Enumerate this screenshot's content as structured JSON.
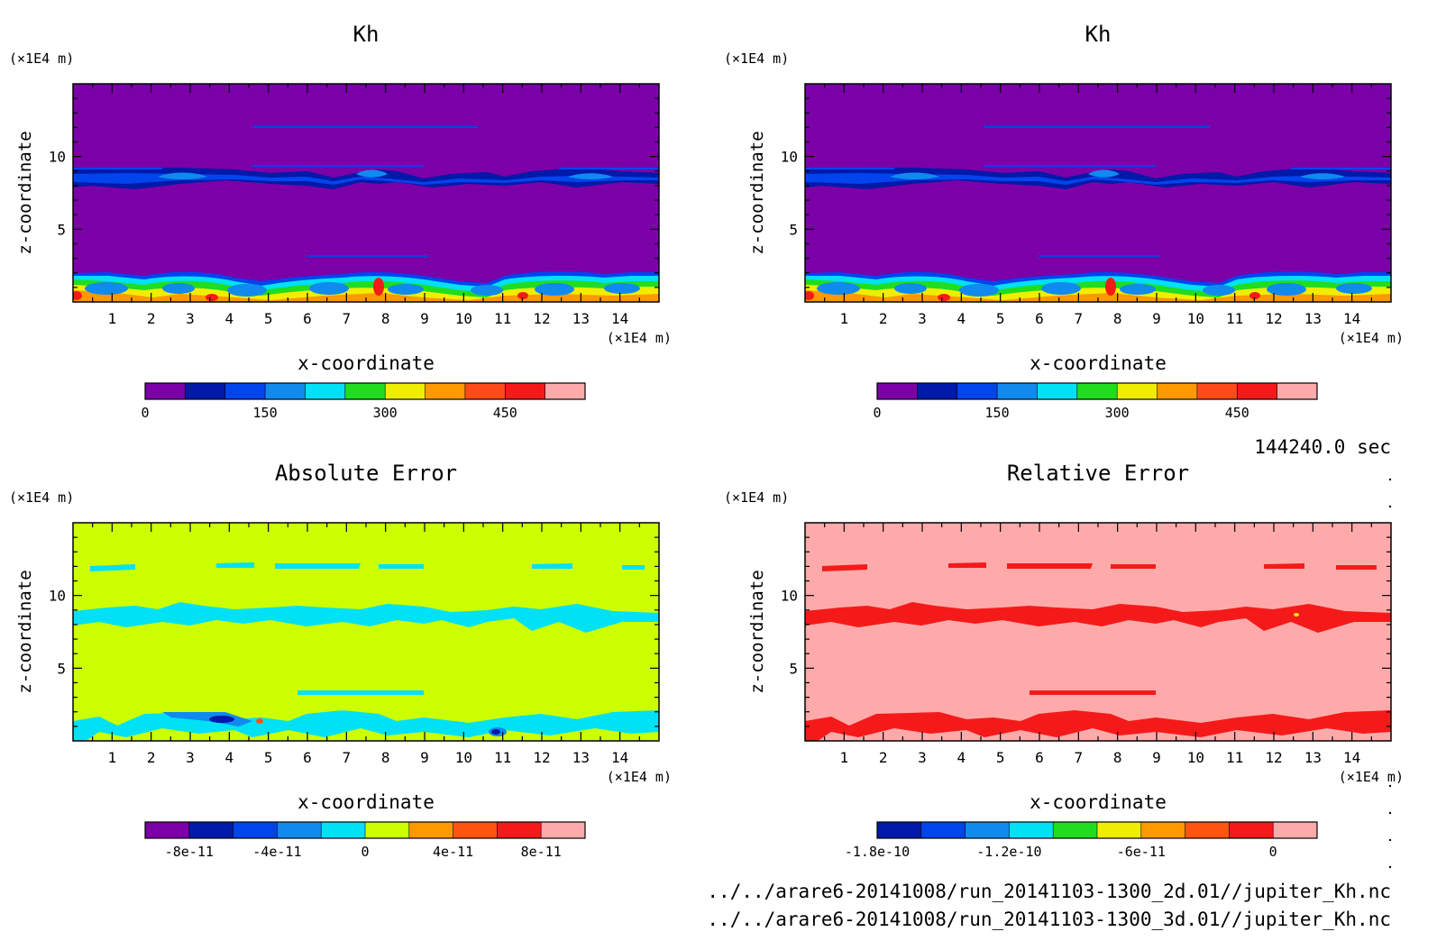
{
  "chart_data": [
    {
      "type": "heatmap",
      "title": "Kh",
      "xlabel": "x-coordinate",
      "ylabel": "z-coordinate",
      "x_unit": "(×1E4 m)",
      "y_unit": "(×1E4 m)",
      "xlim": [
        0,
        15
      ],
      "ylim": [
        0,
        15
      ],
      "xticks": [
        1,
        2,
        3,
        4,
        5,
        6,
        7,
        8,
        9,
        10,
        11,
        12,
        13,
        14
      ],
      "yticks": [
        5,
        10
      ],
      "background_color": "#7b00a8",
      "colorbar": {
        "colors": [
          "#7b00a8",
          "#0019a8",
          "#0044ee",
          "#108aee",
          "#00e1f5",
          "#20dd20",
          "#f0ee00",
          "#ff9900",
          "#ff4a1a",
          "#f51a1a",
          "#ffaaaa"
        ],
        "tick_labels": [
          "0",
          "150",
          "300",
          "450"
        ],
        "tick_positions": [
          0,
          3,
          6,
          9
        ]
      }
    },
    {
      "type": "heatmap",
      "title": "Kh",
      "xlabel": "x-coordinate",
      "ylabel": "z-coordinate",
      "x_unit": "(×1E4 m)",
      "y_unit": "(×1E4 m)",
      "xlim": [
        0,
        15
      ],
      "ylim": [
        0,
        15
      ],
      "xticks": [
        1,
        2,
        3,
        4,
        5,
        6,
        7,
        8,
        9,
        10,
        11,
        12,
        13,
        14
      ],
      "yticks": [
        5,
        10
      ],
      "background_color": "#7b00a8",
      "colorbar": {
        "colors": [
          "#7b00a8",
          "#0019a8",
          "#0044ee",
          "#108aee",
          "#00e1f5",
          "#20dd20",
          "#f0ee00",
          "#ff9900",
          "#ff4a1a",
          "#f51a1a",
          "#ffaaaa"
        ],
        "tick_labels": [
          "0",
          "150",
          "300",
          "450"
        ],
        "tick_positions": [
          0,
          3,
          6,
          9
        ]
      }
    },
    {
      "type": "heatmap",
      "title": "Absolute Error",
      "xlabel": "x-coordinate",
      "ylabel": "z-coordinate",
      "x_unit": "(×1E4 m)",
      "y_unit": "(×1E4 m)",
      "xlim": [
        0,
        15
      ],
      "ylim": [
        0,
        15
      ],
      "xticks": [
        1,
        2,
        3,
        4,
        5,
        6,
        7,
        8,
        9,
        10,
        11,
        12,
        13,
        14
      ],
      "yticks": [
        5,
        10
      ],
      "background_color": "#ccff00",
      "colorbar": {
        "colors": [
          "#7b00a8",
          "#0019a8",
          "#0044ee",
          "#108aee",
          "#00e1f5",
          "#ccff00",
          "#ff9900",
          "#ff5511",
          "#f51a1a",
          "#ffaaaa"
        ],
        "tick_labels": [
          "-8e-11",
          "-4e-11",
          "0",
          "4e-11",
          "8e-11"
        ],
        "tick_positions": [
          1,
          3,
          5,
          7,
          9
        ]
      }
    },
    {
      "type": "heatmap",
      "title": "Relative Error",
      "xlabel": "x-coordinate",
      "ylabel": "z-coordinate",
      "x_unit": "(×1E4 m)",
      "y_unit": "(×1E4 m)",
      "xlim": [
        0,
        15
      ],
      "ylim": [
        0,
        15
      ],
      "xticks": [
        1,
        2,
        3,
        4,
        5,
        6,
        7,
        8,
        9,
        10,
        11,
        12,
        13,
        14
      ],
      "yticks": [
        5,
        10
      ],
      "background_color": "#ffaaaa",
      "colorbar": {
        "colors": [
          "#0019a8",
          "#0044ee",
          "#108aee",
          "#00e1f5",
          "#20dd20",
          "#f0ee00",
          "#ff9900",
          "#ff5511",
          "#f51a1a",
          "#ffaaaa"
        ],
        "tick_labels": [
          "-1.8e-10",
          "-1.2e-10",
          "-6e-11",
          "0"
        ],
        "tick_positions": [
          0,
          3,
          6,
          9
        ]
      }
    }
  ],
  "time_label": "144240.0 sec",
  "file_paths": [
    "../../arare6-20141008/run_20141103-1300_2d.01//jupiter_Kh.nc",
    "../../arare6-20141008/run_20141103-1300_3d.01//jupiter_Kh.nc"
  ]
}
